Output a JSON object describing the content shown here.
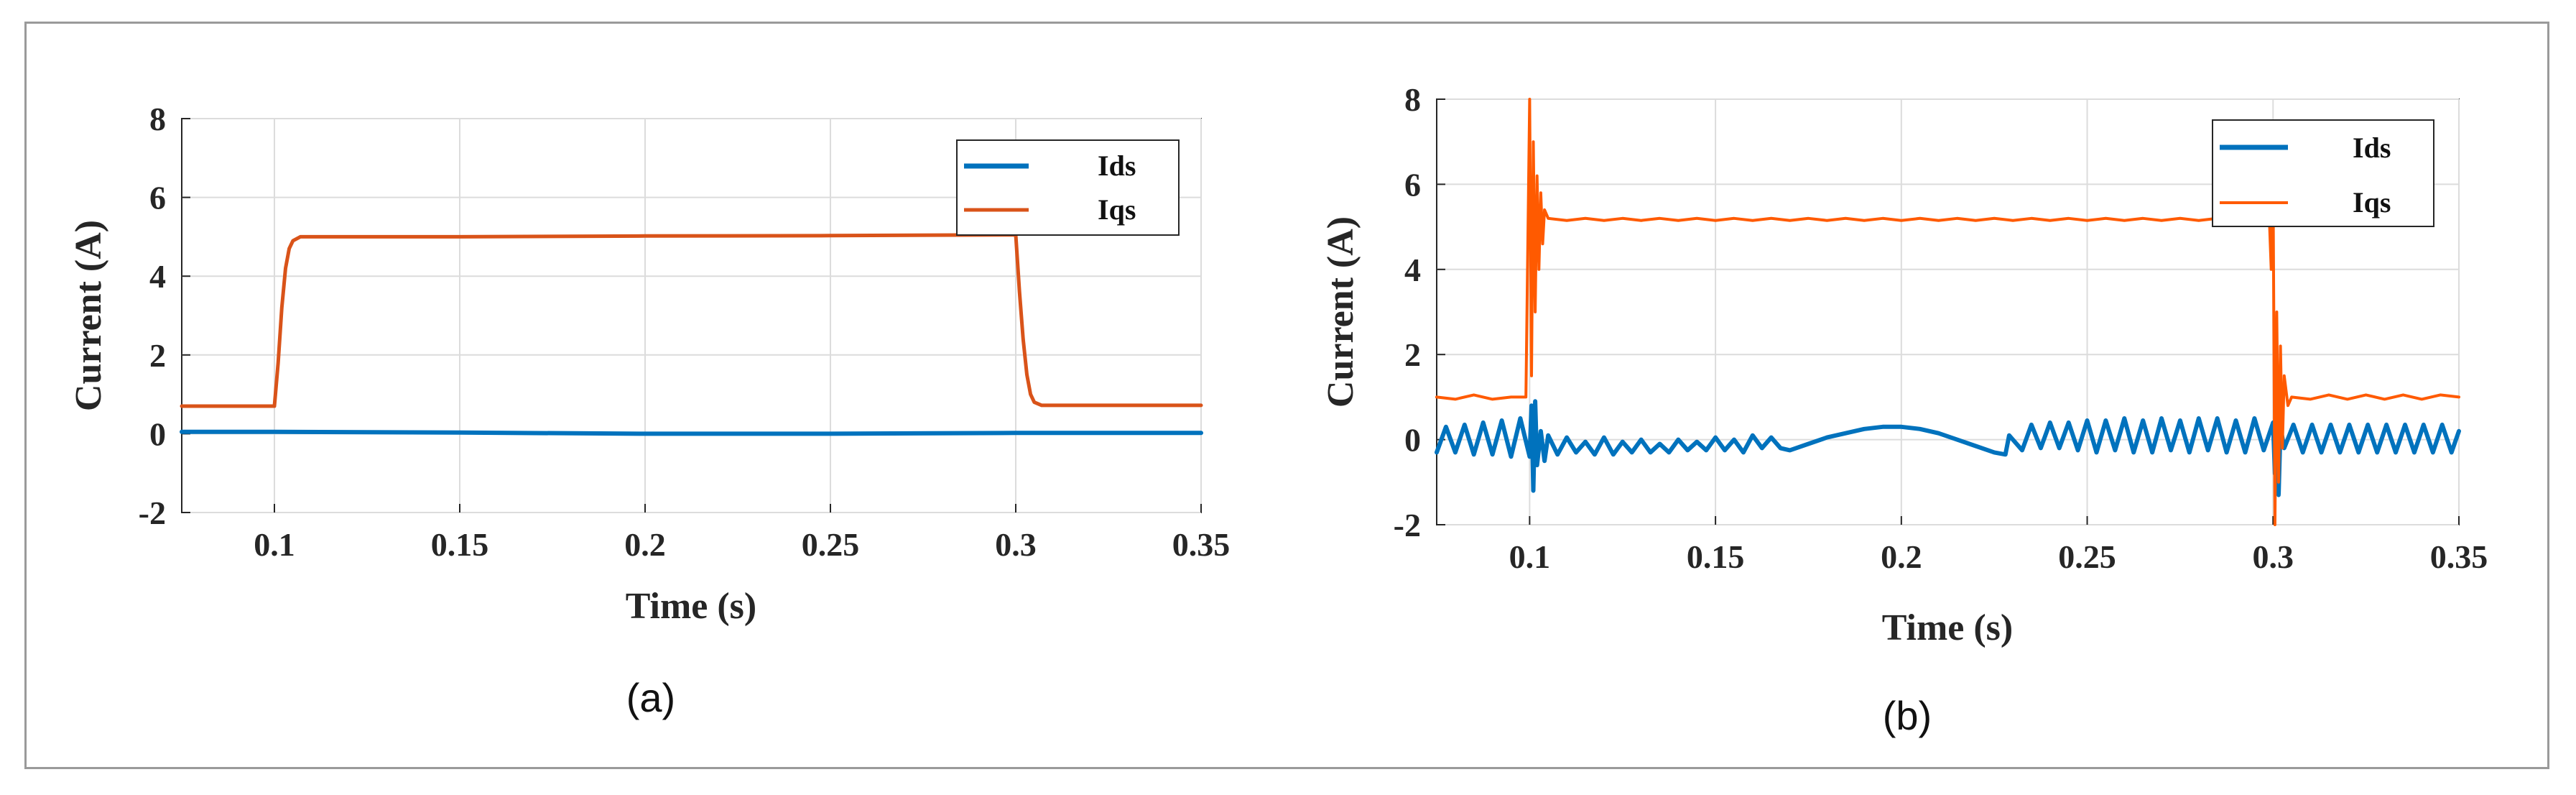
{
  "chart_data": [
    {
      "type": "line",
      "panel_label": "(a)",
      "title": "",
      "xlabel": "Time (s)",
      "ylabel": "Current (A)",
      "xlim": [
        0.075,
        0.35
      ],
      "ylim": [
        -2,
        8
      ],
      "xticks": [
        0.1,
        0.15,
        0.2,
        0.25,
        0.3,
        0.35
      ],
      "xtick_labels": [
        "0.1",
        "0.15",
        "0.2",
        "0.25",
        "0.3",
        "0.35"
      ],
      "yticks": [
        -2,
        0,
        2,
        4,
        6,
        8
      ],
      "ytick_labels": [
        "-2",
        "0",
        "2",
        "4",
        "6",
        "8"
      ],
      "grid": true,
      "legend_position": "top-right",
      "series": [
        {
          "name": "Ids",
          "color": "#0072BD",
          "x": [
            0.075,
            0.1,
            0.15,
            0.2,
            0.25,
            0.3,
            0.35
          ],
          "y": [
            0.05,
            0.05,
            0.03,
            0.0,
            0.0,
            0.02,
            0.02
          ]
        },
        {
          "name": "Iqs",
          "color": "#D95319",
          "x": [
            0.075,
            0.1,
            0.101,
            0.102,
            0.103,
            0.104,
            0.105,
            0.107,
            0.15,
            0.2,
            0.25,
            0.298,
            0.3,
            0.301,
            0.302,
            0.303,
            0.304,
            0.305,
            0.307,
            0.35
          ],
          "y": [
            0.7,
            0.7,
            1.8,
            3.2,
            4.2,
            4.7,
            4.9,
            5.0,
            5.0,
            5.02,
            5.03,
            5.05,
            5.05,
            3.6,
            2.4,
            1.5,
            1.0,
            0.8,
            0.72,
            0.72
          ]
        }
      ]
    },
    {
      "type": "line",
      "panel_label": "(b)",
      "title": "",
      "xlabel": "Time (s)",
      "ylabel": "Current (A)",
      "xlim": [
        0.075,
        0.35
      ],
      "ylim": [
        -2,
        8
      ],
      "xticks": [
        0.1,
        0.15,
        0.2,
        0.25,
        0.3,
        0.35
      ],
      "xtick_labels": [
        "0.1",
        "0.15",
        "0.2",
        "0.25",
        "0.3",
        "0.35"
      ],
      "yticks": [
        -2,
        0,
        2,
        4,
        6,
        8
      ],
      "ytick_labels": [
        "-2",
        "0",
        "2",
        "4",
        "6",
        "8"
      ],
      "grid": true,
      "legend_position": "top-right",
      "series": [
        {
          "name": "Ids",
          "color": "#0072BD",
          "x": [
            0.075,
            0.0775,
            0.08,
            0.0825,
            0.085,
            0.0875,
            0.09,
            0.0925,
            0.095,
            0.0975,
            0.1,
            0.1005,
            0.101,
            0.1015,
            0.102,
            0.103,
            0.104,
            0.105,
            0.1075,
            0.11,
            0.1125,
            0.115,
            0.1175,
            0.12,
            0.1225,
            0.125,
            0.1275,
            0.13,
            0.1325,
            0.135,
            0.1375,
            0.14,
            0.1425,
            0.145,
            0.1475,
            0.15,
            0.1525,
            0.155,
            0.1575,
            0.16,
            0.1625,
            0.165,
            0.1675,
            0.17,
            0.175,
            0.18,
            0.185,
            0.19,
            0.195,
            0.2,
            0.205,
            0.21,
            0.215,
            0.22,
            0.225,
            0.228,
            0.229,
            0.2325,
            0.235,
            0.2375,
            0.24,
            0.2425,
            0.245,
            0.2475,
            0.25,
            0.2525,
            0.255,
            0.2575,
            0.26,
            0.2625,
            0.265,
            0.2675,
            0.27,
            0.2725,
            0.275,
            0.2775,
            0.28,
            0.2825,
            0.285,
            0.2875,
            0.29,
            0.2925,
            0.295,
            0.2975,
            0.3,
            0.3005,
            0.301,
            0.3015,
            0.302,
            0.303,
            0.3055,
            0.308,
            0.3105,
            0.313,
            0.3155,
            0.318,
            0.3205,
            0.323,
            0.3255,
            0.328,
            0.3305,
            0.333,
            0.3355,
            0.338,
            0.3405,
            0.343,
            0.3455,
            0.348,
            0.35
          ],
          "y": [
            -0.3,
            0.3,
            -0.3,
            0.35,
            -0.35,
            0.4,
            -0.35,
            0.45,
            -0.4,
            0.5,
            -0.4,
            0.8,
            -1.2,
            0.9,
            -0.6,
            0.2,
            -0.5,
            0.1,
            -0.35,
            0.05,
            -0.3,
            -0.05,
            -0.35,
            0.05,
            -0.35,
            -0.05,
            -0.3,
            0.0,
            -0.3,
            -0.1,
            -0.3,
            0.0,
            -0.25,
            -0.05,
            -0.25,
            0.05,
            -0.25,
            0.0,
            -0.3,
            0.1,
            -0.2,
            0.05,
            -0.2,
            -0.25,
            -0.1,
            0.05,
            0.15,
            0.25,
            0.3,
            0.3,
            0.25,
            0.15,
            0.0,
            -0.15,
            -0.3,
            -0.35,
            0.1,
            -0.25,
            0.35,
            -0.2,
            0.4,
            -0.2,
            0.4,
            -0.25,
            0.45,
            -0.3,
            0.45,
            -0.25,
            0.5,
            -0.3,
            0.45,
            -0.3,
            0.5,
            -0.25,
            0.45,
            -0.3,
            0.5,
            -0.25,
            0.5,
            -0.3,
            0.45,
            -0.3,
            0.5,
            -0.25,
            0.4,
            -0.8,
            0.6,
            -1.3,
            0.3,
            -0.2,
            0.35,
            -0.3,
            0.35,
            -0.3,
            0.35,
            -0.3,
            0.35,
            -0.3,
            0.35,
            -0.3,
            0.35,
            -0.3,
            0.35,
            -0.3,
            0.35,
            -0.3,
            0.35,
            -0.3,
            0.2
          ]
        },
        {
          "name": "Iqs",
          "color": "#FF5A00",
          "x": [
            0.075,
            0.08,
            0.085,
            0.09,
            0.095,
            0.099,
            0.1,
            0.1005,
            0.101,
            0.1015,
            0.102,
            0.1025,
            0.103,
            0.1035,
            0.104,
            0.105,
            0.11,
            0.115,
            0.12,
            0.125,
            0.13,
            0.135,
            0.14,
            0.145,
            0.15,
            0.155,
            0.16,
            0.165,
            0.17,
            0.175,
            0.18,
            0.185,
            0.19,
            0.195,
            0.2,
            0.205,
            0.21,
            0.215,
            0.22,
            0.225,
            0.23,
            0.235,
            0.24,
            0.245,
            0.25,
            0.255,
            0.26,
            0.265,
            0.27,
            0.275,
            0.28,
            0.285,
            0.29,
            0.295,
            0.299,
            0.2995,
            0.3,
            0.3005,
            0.301,
            0.3015,
            0.302,
            0.3025,
            0.303,
            0.304,
            0.305,
            0.31,
            0.315,
            0.32,
            0.325,
            0.33,
            0.335,
            0.34,
            0.345,
            0.35
          ],
          "y": [
            1.0,
            0.95,
            1.05,
            0.95,
            1.0,
            1.0,
            8.0,
            1.5,
            7.0,
            3.0,
            6.2,
            4.0,
            5.8,
            4.6,
            5.4,
            5.2,
            5.15,
            5.2,
            5.15,
            5.2,
            5.15,
            5.2,
            5.15,
            5.2,
            5.15,
            5.2,
            5.15,
            5.2,
            5.15,
            5.2,
            5.15,
            5.2,
            5.15,
            5.2,
            5.15,
            5.2,
            5.15,
            5.2,
            5.15,
            5.2,
            5.15,
            5.2,
            5.15,
            5.2,
            5.15,
            5.2,
            5.15,
            5.2,
            5.15,
            5.2,
            5.15,
            5.2,
            5.15,
            5.2,
            5.2,
            4.0,
            6.0,
            -2.0,
            3.0,
            -1.0,
            2.2,
            -0.2,
            1.5,
            0.8,
            1.0,
            0.95,
            1.05,
            0.95,
            1.05,
            0.95,
            1.05,
            0.95,
            1.05,
            1.0
          ]
        }
      ]
    }
  ]
}
